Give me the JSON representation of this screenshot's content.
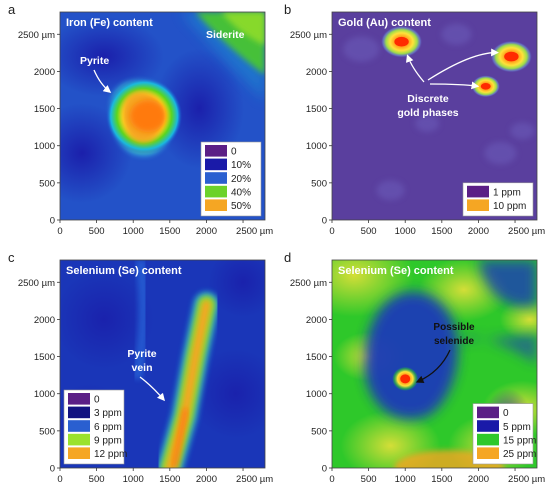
{
  "chart_data": [
    {
      "type": "heatmap",
      "panel": "a",
      "title": "Iron (Fe) content",
      "x_ticks": [
        "0",
        "500",
        "1000",
        "1500",
        "2000",
        "2500 µm"
      ],
      "y_ticks": [
        "0",
        "500",
        "1000",
        "1500",
        "2000",
        "2500 µm"
      ],
      "x_range": [
        0,
        2800
      ],
      "y_range": [
        0,
        2800
      ],
      "background_value": 20,
      "features": [
        {
          "label": "Pyrite",
          "x": 1150,
          "y": 1400,
          "peak": 50,
          "shape": "blob"
        },
        {
          "label": "Siderite",
          "x": 2450,
          "y": 2450,
          "peak": 40,
          "shape": "corner"
        }
      ],
      "annotations": [
        "Pyrite",
        "Siderite"
      ],
      "legend": {
        "position": "bottom-right",
        "entries": [
          {
            "label": "0",
            "color": "#5b1f86"
          },
          {
            "label": "10%",
            "color": "#1a1aa8"
          },
          {
            "label": "20%",
            "color": "#2a5fd0"
          },
          {
            "label": "40%",
            "color": "#6cd22a"
          },
          {
            "label": "50%",
            "color": "#f5a623"
          }
        ]
      }
    },
    {
      "type": "heatmap",
      "panel": "b",
      "title": "Gold (Au) content",
      "x_ticks": [
        "0",
        "500",
        "1000",
        "1500",
        "2000",
        "2500 µm"
      ],
      "y_ticks": [
        "0",
        "500",
        "1000",
        "1500",
        "2000",
        "2500 µm"
      ],
      "x_range": [
        0,
        2800
      ],
      "y_range": [
        0,
        2800
      ],
      "background_value": 1,
      "features": [
        {
          "x": 950,
          "y": 2400,
          "peak": 10
        },
        {
          "x": 2450,
          "y": 2200,
          "peak": 10
        },
        {
          "x": 2100,
          "y": 1800,
          "peak": 8
        }
      ],
      "annotations": [
        "Discrete",
        "gold phases"
      ],
      "legend": {
        "position": "bottom-right",
        "entries": [
          {
            "label": "1 ppm",
            "color": "#5b1f86"
          },
          {
            "label": "10 ppm",
            "color": "#f5a623"
          }
        ]
      }
    },
    {
      "type": "heatmap",
      "panel": "c",
      "title": "Selenium (Se) content",
      "x_ticks": [
        "0",
        "500",
        "1000",
        "1500",
        "2000",
        "2500 µm"
      ],
      "y_ticks": [
        "0",
        "500",
        "1000",
        "1500",
        "2000",
        "2500 µm"
      ],
      "x_range": [
        0,
        2800
      ],
      "y_range": [
        0,
        2800
      ],
      "background_value": 5,
      "features": [
        {
          "label": "Pyrite vein",
          "path": [
            [
              1500,
              0
            ],
            [
              1700,
              700
            ],
            [
              1850,
              1500
            ],
            [
              2000,
              2200
            ]
          ],
          "peak": 12
        }
      ],
      "annotations": [
        "Pyrite",
        "vein"
      ],
      "legend": {
        "position": "bottom-left",
        "entries": [
          {
            "label": "0",
            "color": "#5b1f86"
          },
          {
            "label": "3 ppm",
            "color": "#131380"
          },
          {
            "label": "6 ppm",
            "color": "#2a5fd0"
          },
          {
            "label": "9 ppm",
            "color": "#9be22d"
          },
          {
            "label": "12 ppm",
            "color": "#f5a623"
          }
        ]
      }
    },
    {
      "type": "heatmap",
      "panel": "d",
      "title": "Selenium (Se) content",
      "x_ticks": [
        "0",
        "500",
        "1000",
        "1500",
        "2000",
        "2500 µm"
      ],
      "y_ticks": [
        "0",
        "500",
        "1000",
        "1500",
        "2000",
        "2500 µm"
      ],
      "x_range": [
        0,
        2800
      ],
      "y_range": [
        0,
        2800
      ],
      "background_value": 12,
      "features": [
        {
          "label": "Possible selenide",
          "x": 1000,
          "y": 1200,
          "peak": 25
        }
      ],
      "annotations": [
        "Possible",
        "selenide"
      ],
      "legend": {
        "position": "bottom-right",
        "entries": [
          {
            "label": "0",
            "color": "#5b1f86"
          },
          {
            "label": "5 ppm",
            "color": "#1a1aa8"
          },
          {
            "label": "15 ppm",
            "color": "#2ec82a"
          },
          {
            "label": "25 ppm",
            "color": "#f5a623"
          }
        ]
      }
    }
  ]
}
